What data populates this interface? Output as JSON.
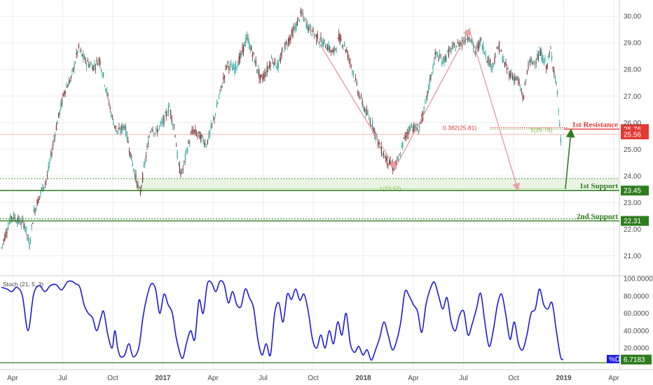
{
  "colors": {
    "bull": "#26a69a",
    "bear": "#7a2a2a",
    "support": "#2e7d1f",
    "resistance": "#e53935",
    "stoch": "#1a1adf",
    "fib_arrow": "#e8a0a0",
    "grid": "#eeeeee"
  },
  "chart_data": [
    {
      "type": "candlestick",
      "x_axis": {
        "tick_labels": [
          "Apr",
          "Jul",
          "Oct",
          "2017",
          "Apr",
          "Jul",
          "Oct",
          "2018",
          "Apr",
          "Jul",
          "Oct",
          "2019",
          "Apr"
        ],
        "bold_labels": [
          "2017",
          "2018",
          "2019"
        ],
        "range": [
          "2016-03",
          "2019-04"
        ]
      },
      "y_axis": {
        "ticks": [
          "21.00",
          "22.00",
          "23.00",
          "24.00",
          "25.00",
          "26.00",
          "27.00",
          "28.00",
          "29.00",
          "30.00"
        ],
        "ylim": [
          20.3,
          30.4
        ],
        "side": "right"
      },
      "price_path": [
        [
          0,
          21.3
        ],
        [
          8,
          22.0
        ],
        [
          15,
          22.5
        ],
        [
          25,
          22.3
        ],
        [
          33,
          22.2
        ],
        [
          40,
          21.4
        ],
        [
          46,
          22.6
        ],
        [
          55,
          23.3
        ],
        [
          65,
          23.9
        ],
        [
          78,
          25.8
        ],
        [
          90,
          27.2
        ],
        [
          100,
          27.7
        ],
        [
          110,
          28.8
        ],
        [
          120,
          28.3
        ],
        [
          132,
          28.1
        ],
        [
          140,
          28.4
        ],
        [
          150,
          27.2
        ],
        [
          158,
          26.2
        ],
        [
          166,
          25.6
        ],
        [
          176,
          25.9
        ],
        [
          186,
          24.6
        ],
        [
          193,
          23.8
        ],
        [
          198,
          23.3
        ],
        [
          203,
          24.2
        ],
        [
          208,
          25.0
        ],
        [
          214,
          25.9
        ],
        [
          220,
          25.6
        ],
        [
          230,
          26.0
        ],
        [
          240,
          26.6
        ],
        [
          248,
          25.6
        ],
        [
          253,
          24.3
        ],
        [
          258,
          24.1
        ],
        [
          265,
          25.0
        ],
        [
          273,
          25.7
        ],
        [
          283,
          25.5
        ],
        [
          293,
          25.2
        ],
        [
          303,
          26.1
        ],
        [
          312,
          27.1
        ],
        [
          322,
          28.2
        ],
        [
          332,
          28.0
        ],
        [
          342,
          28.5
        ],
        [
          350,
          29.2
        ],
        [
          360,
          28.5
        ],
        [
          370,
          27.6
        ],
        [
          378,
          27.9
        ],
        [
          386,
          28.4
        ],
        [
          395,
          28.1
        ],
        [
          403,
          28.8
        ],
        [
          412,
          29.2
        ],
        [
          420,
          29.6
        ],
        [
          428,
          30.1
        ],
        [
          436,
          29.7
        ],
        [
          444,
          29.4
        ],
        [
          454,
          29.1
        ],
        [
          464,
          28.9
        ],
        [
          474,
          28.6
        ],
        [
          482,
          29.2
        ],
        [
          490,
          28.9
        ],
        [
          500,
          28.1
        ],
        [
          510,
          27.1
        ],
        [
          520,
          26.4
        ],
        [
          530,
          25.9
        ],
        [
          540,
          25.1
        ],
        [
          550,
          24.6
        ],
        [
          560,
          24.3
        ],
        [
          567,
          24.6
        ],
        [
          575,
          25.4
        ],
        [
          585,
          25.9
        ],
        [
          595,
          25.7
        ],
        [
          603,
          26.4
        ],
        [
          612,
          27.6
        ],
        [
          620,
          28.6
        ],
        [
          630,
          28.3
        ],
        [
          640,
          28.7
        ],
        [
          650,
          28.9
        ],
        [
          660,
          29.1
        ],
        [
          668,
          29.3
        ],
        [
          676,
          28.6
        ],
        [
          684,
          29.1
        ],
        [
          692,
          28.5
        ],
        [
          700,
          28.1
        ],
        [
          710,
          28.9
        ],
        [
          718,
          28.2
        ],
        [
          727,
          27.8
        ],
        [
          737,
          27.6
        ],
        [
          745,
          26.9
        ],
        [
          752,
          28.2
        ],
        [
          760,
          28.3
        ],
        [
          770,
          28.6
        ],
        [
          778,
          28.1
        ],
        [
          784,
          28.7
        ],
        [
          790,
          27.8
        ],
        [
          794,
          27.0
        ],
        [
          798,
          25.3
        ],
        [
          800,
          25.56
        ]
      ],
      "reading_plan": [
        {
          "name": "1st Resistance",
          "value": 25.76,
          "value_label": "25.76",
          "color": "#e53935"
        },
        {
          "name": "1st Support",
          "value": 23.45,
          "value_label": "23.45",
          "color": "#2e7d1f"
        },
        {
          "name": "2nd Support",
          "value": 22.31,
          "value_label": "22.31",
          "color": "#2e7d1f"
        }
      ],
      "current_price": {
        "value": 25.56,
        "label": "25.56"
      },
      "annotations": {
        "fib_label": "0.382(25.81)",
        "fib_value": 25.81,
        "proj_1_label": "1(25.76)",
        "proj_1_value": 25.76,
        "proj_2_label": "1(23.52)",
        "proj_2_value": 23.52,
        "support_zone": [
          23.45,
          23.9
        ]
      }
    },
    {
      "type": "line",
      "title": "Stoch (21, 5, 3)",
      "series_name": "%D",
      "y_axis": {
        "ticks": [
          "20.0000",
          "40.0000",
          "60.0000",
          "80.0000",
          "100.0000"
        ],
        "ylim": [
          0,
          100
        ]
      },
      "last_value": 6.7183,
      "last_value_label": "6.7183",
      "level_line": 3,
      "values": [
        [
          0,
          90
        ],
        [
          8,
          88
        ],
        [
          15,
          85
        ],
        [
          22,
          90
        ],
        [
          30,
          80
        ],
        [
          38,
          40
        ],
        [
          46,
          82
        ],
        [
          54,
          92
        ],
        [
          62,
          85
        ],
        [
          70,
          92
        ],
        [
          78,
          93
        ],
        [
          86,
          87
        ],
        [
          94,
          96
        ],
        [
          100,
          97
        ],
        [
          106,
          94
        ],
        [
          112,
          90
        ],
        [
          118,
          70
        ],
        [
          124,
          60
        ],
        [
          130,
          55
        ],
        [
          136,
          40
        ],
        [
          142,
          55
        ],
        [
          146,
          62
        ],
        [
          152,
          35
        ],
        [
          158,
          20
        ],
        [
          162,
          40
        ],
        [
          166,
          20
        ],
        [
          170,
          10
        ],
        [
          176,
          12
        ],
        [
          182,
          25
        ],
        [
          188,
          10
        ],
        [
          196,
          20
        ],
        [
          202,
          55
        ],
        [
          208,
          80
        ],
        [
          214,
          94
        ],
        [
          220,
          88
        ],
        [
          226,
          60
        ],
        [
          232,
          82
        ],
        [
          238,
          70
        ],
        [
          244,
          60
        ],
        [
          250,
          30
        ],
        [
          258,
          8
        ],
        [
          264,
          25
        ],
        [
          270,
          40
        ],
        [
          276,
          30
        ],
        [
          282,
          75
        ],
        [
          288,
          60
        ],
        [
          294,
          94
        ],
        [
          300,
          95
        ],
        [
          306,
          85
        ],
        [
          312,
          97
        ],
        [
          318,
          93
        ],
        [
          324,
          72
        ],
        [
          330,
          85
        ],
        [
          336,
          70
        ],
        [
          342,
          68
        ],
        [
          348,
          88
        ],
        [
          354,
          78
        ],
        [
          360,
          66
        ],
        [
          366,
          30
        ],
        [
          372,
          12
        ],
        [
          378,
          25
        ],
        [
          384,
          12
        ],
        [
          390,
          60
        ],
        [
          396,
          72
        ],
        [
          402,
          50
        ],
        [
          408,
          82
        ],
        [
          414,
          76
        ],
        [
          420,
          88
        ],
        [
          426,
          75
        ],
        [
          432,
          82
        ],
        [
          438,
          62
        ],
        [
          444,
          30
        ],
        [
          450,
          20
        ],
        [
          456,
          35
        ],
        [
          462,
          20
        ],
        [
          468,
          40
        ],
        [
          474,
          25
        ],
        [
          480,
          50
        ],
        [
          486,
          35
        ],
        [
          492,
          60
        ],
        [
          498,
          25
        ],
        [
          504,
          15
        ],
        [
          510,
          22
        ],
        [
          516,
          12
        ],
        [
          522,
          18
        ],
        [
          528,
          6
        ],
        [
          534,
          18
        ],
        [
          540,
          32
        ],
        [
          546,
          50
        ],
        [
          552,
          35
        ],
        [
          558,
          18
        ],
        [
          564,
          28
        ],
        [
          570,
          50
        ],
        [
          576,
          85
        ],
        [
          582,
          80
        ],
        [
          588,
          70
        ],
        [
          594,
          62
        ],
        [
          600,
          38
        ],
        [
          606,
          70
        ],
        [
          612,
          88
        ],
        [
          618,
          96
        ],
        [
          624,
          80
        ],
        [
          630,
          65
        ],
        [
          636,
          78
        ],
        [
          642,
          50
        ],
        [
          648,
          40
        ],
        [
          654,
          58
        ],
        [
          660,
          62
        ],
        [
          666,
          35
        ],
        [
          672,
          48
        ],
        [
          678,
          65
        ],
        [
          684,
          83
        ],
        [
          690,
          50
        ],
        [
          696,
          22
        ],
        [
          702,
          40
        ],
        [
          708,
          70
        ],
        [
          714,
          82
        ],
        [
          720,
          58
        ],
        [
          726,
          30
        ],
        [
          732,
          50
        ],
        [
          738,
          25
        ],
        [
          744,
          18
        ],
        [
          750,
          35
        ],
        [
          756,
          60
        ],
        [
          762,
          65
        ],
        [
          768,
          88
        ],
        [
          774,
          70
        ],
        [
          780,
          65
        ],
        [
          786,
          72
        ],
        [
          792,
          40
        ],
        [
          798,
          10
        ],
        [
          802,
          7
        ]
      ]
    }
  ]
}
